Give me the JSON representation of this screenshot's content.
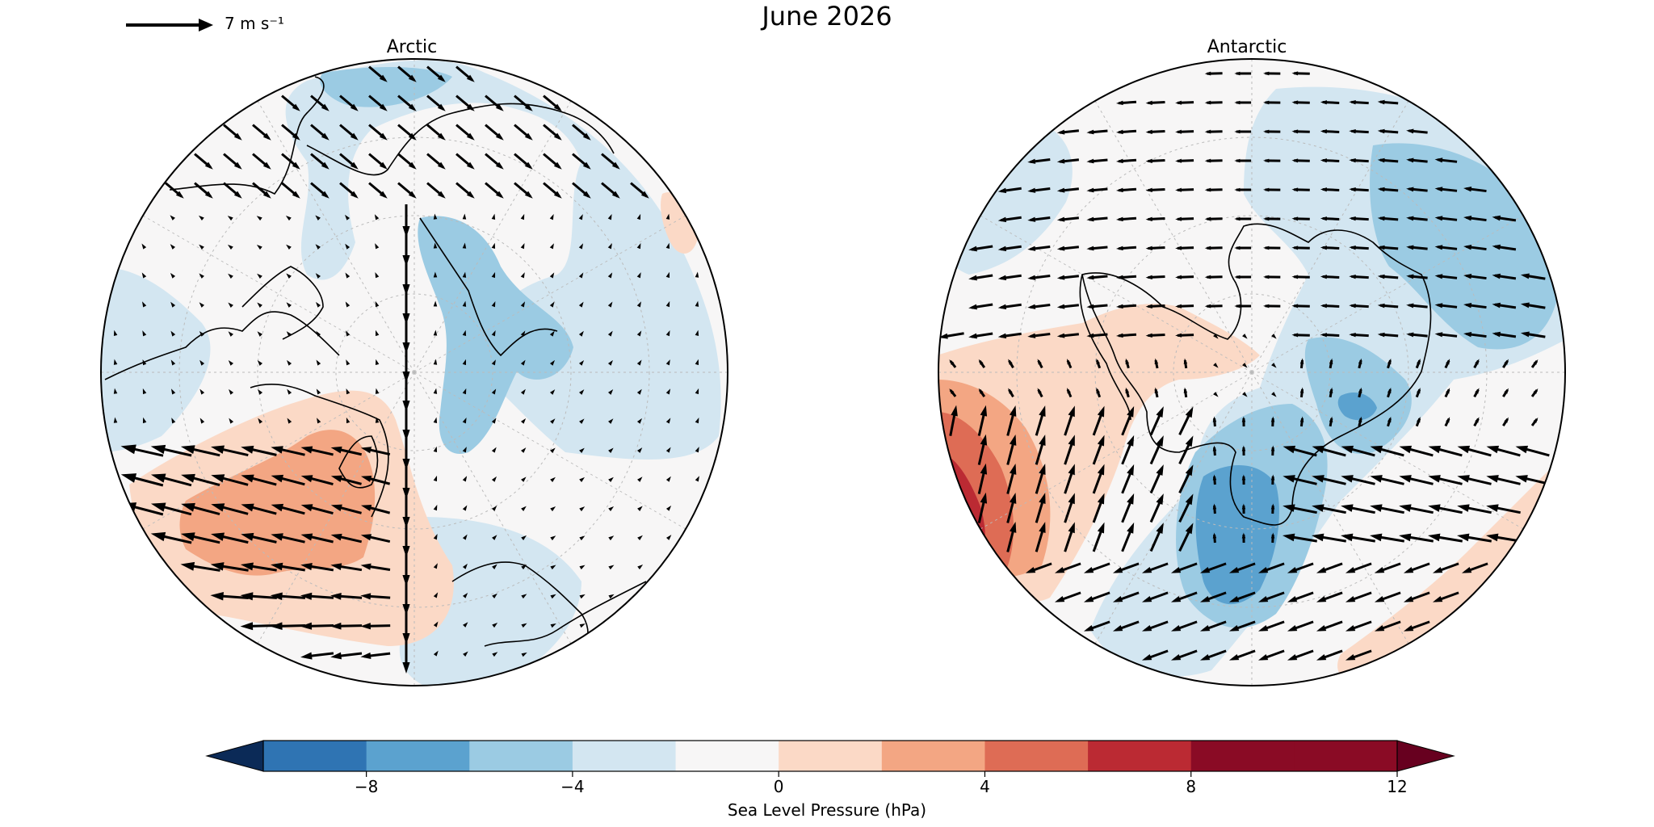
{
  "title": "June 2026",
  "reference_vector": {
    "label": "7 m s⁻¹",
    "speed": 7
  },
  "panels": [
    {
      "id": "arctic",
      "title": "Arctic"
    },
    {
      "id": "antarctic",
      "title": "Antarctic"
    }
  ],
  "colorbar": {
    "label": "Sea Level Pressure (hPa)",
    "levels": [
      -10,
      -8,
      -6,
      -4,
      -2,
      0,
      2,
      4,
      6,
      8,
      10,
      12
    ],
    "ticks": [
      {
        "value": -8,
        "label": "−8"
      },
      {
        "value": -4,
        "label": "−4"
      },
      {
        "value": 0,
        "label": "0"
      },
      {
        "value": 4,
        "label": "4"
      },
      {
        "value": 8,
        "label": "8"
      },
      {
        "value": 12,
        "label": "12"
      }
    ],
    "colors": [
      "#154b86",
      "#2f74b3",
      "#5ba2cf",
      "#9bcbe3",
      "#d3e6f1",
      "#f7f6f6",
      "#fbd9c6",
      "#f3a683",
      "#de6c55",
      "#bb2a33",
      "#8a0b25"
    ],
    "under_color": "#0b2a57",
    "over_color": "#67001f",
    "extend": "both"
  },
  "colors": {
    "land_outline": "#000000",
    "vector": "#000000",
    "grid": "#bbbbbb"
  }
}
